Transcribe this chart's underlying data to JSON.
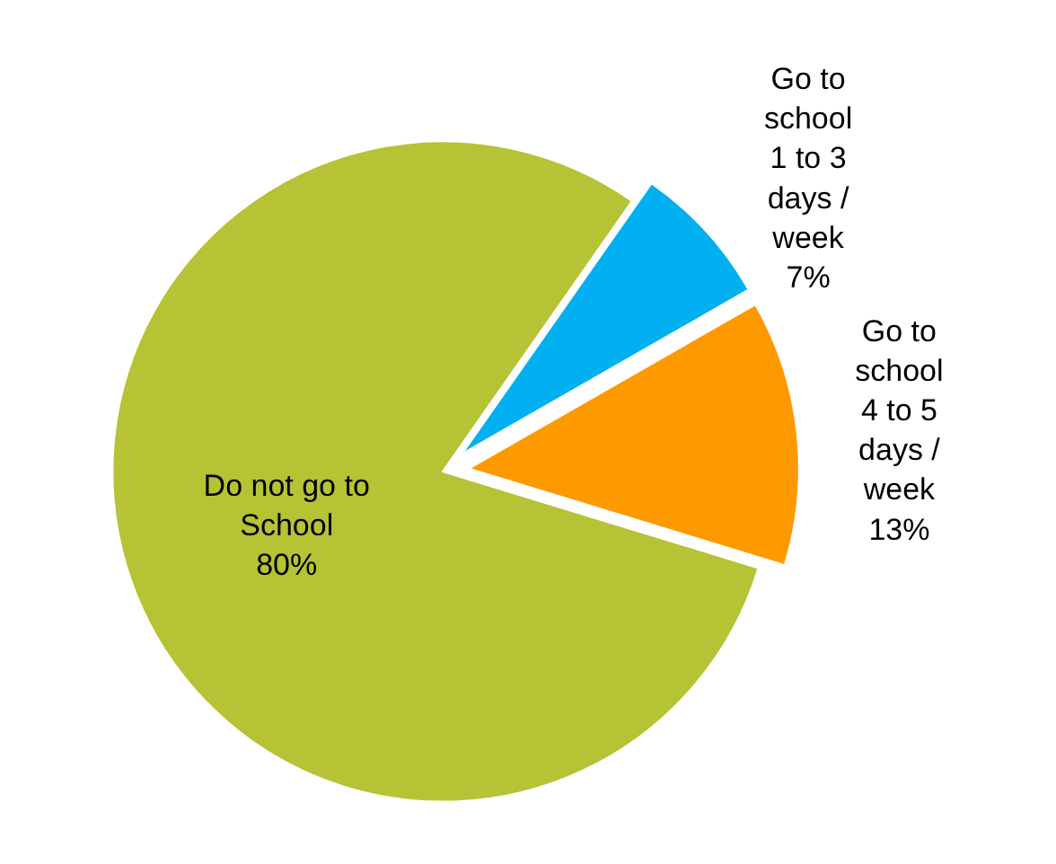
{
  "chart_data": {
    "type": "pie",
    "categories": [
      "Go to school 1 to 3 days / week",
      "Go to school 4 to 5 days / week",
      "Do not go to School"
    ],
    "values": [
      7,
      13,
      80
    ],
    "colors": [
      "#00b0f0",
      "#ff9900",
      "#b5c334"
    ],
    "value_labels": [
      "7%",
      "13%",
      "80%"
    ],
    "legend": false
  }
}
